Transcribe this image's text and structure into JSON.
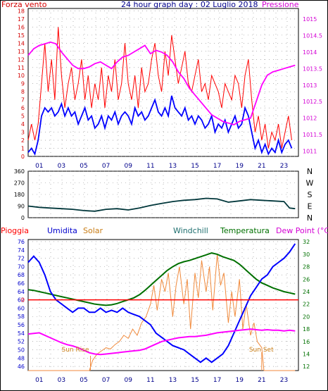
{
  "page": {
    "outer_border_color": "#000000"
  },
  "chart_data": [
    {
      "id": "top",
      "type": "line",
      "title": "24 hour graph day : 02 Luglio 2018",
      "left_label": "Forza vento",
      "right_label": "Pressione",
      "left_color": "#d40000",
      "right_color": "#d400d4",
      "title_color": "#00008b",
      "x_ticks": [
        "01",
        "03",
        "05",
        "07",
        "09",
        "11",
        "13",
        "15",
        "17",
        "19",
        "21",
        "23"
      ],
      "y_left_ticks": [
        "0",
        "1",
        "2",
        "3",
        "4",
        "5",
        "6",
        "7",
        "8",
        "9",
        "10",
        "11",
        "12",
        "13",
        "14",
        "15",
        "16",
        "17",
        "18"
      ],
      "y_right_ticks": [
        "1011",
        "1011.5",
        "1012",
        "1012.5",
        "1013",
        "1013.5",
        "1014",
        "1014.5",
        "1015"
      ],
      "ylim_left": [
        0,
        18.3
      ],
      "ylim_right": [
        1010.84,
        1015.32
      ],
      "xlim": [
        0,
        24.3
      ],
      "series": [
        {
          "color": "#ff0000",
          "axis": "left",
          "x": [
            0,
            0.3,
            0.6,
            0.9,
            1.2,
            1.5,
            1.8,
            2.1,
            2.4,
            2.7,
            3.0,
            3.3,
            3.6,
            3.9,
            4.2,
            4.5,
            4.8,
            5.1,
            5.4,
            5.7,
            6.0,
            6.3,
            6.6,
            6.9,
            7.2,
            7.5,
            7.8,
            8.1,
            8.4,
            8.7,
            9.0,
            9.3,
            9.6,
            9.9,
            10.2,
            10.5,
            10.8,
            11.1,
            11.4,
            11.7,
            12.0,
            12.3,
            12.6,
            12.9,
            13.2,
            13.5,
            13.8,
            14.1,
            14.4,
            14.7,
            15.0,
            15.3,
            15.6,
            15.9,
            16.2,
            16.5,
            16.8,
            17.1,
            17.4,
            17.7,
            18.0,
            18.3,
            18.6,
            18.9,
            19.2,
            19.5,
            19.8,
            20.1,
            20.4,
            20.7,
            21.0,
            21.3,
            21.6,
            21.9,
            22.2,
            22.5,
            22.8,
            23.1,
            23.4,
            23.7
          ],
          "y": [
            2,
            4,
            2,
            4,
            9,
            14,
            8,
            12,
            7,
            16,
            10,
            6,
            9,
            11,
            7,
            9,
            12,
            7,
            10,
            6,
            9,
            7,
            11,
            6,
            10,
            8,
            12,
            7,
            9,
            14,
            9,
            7,
            10,
            6,
            11,
            8,
            9,
            12,
            14,
            10,
            8,
            13,
            10,
            15,
            12,
            9,
            11,
            13,
            9,
            8,
            10,
            12,
            8,
            9,
            7,
            10,
            9,
            8,
            6,
            9,
            8,
            7,
            10,
            9,
            6,
            10,
            12,
            7,
            3,
            5,
            2,
            4,
            1,
            3,
            2,
            4,
            1,
            3,
            5,
            2
          ]
        },
        {
          "color": "#0000ff",
          "axis": "left",
          "x": [
            0,
            0.3,
            0.6,
            0.9,
            1.2,
            1.5,
            1.8,
            2.1,
            2.4,
            2.7,
            3.0,
            3.3,
            3.6,
            3.9,
            4.2,
            4.5,
            4.8,
            5.1,
            5.4,
            5.7,
            6.0,
            6.3,
            6.6,
            6.9,
            7.2,
            7.5,
            7.8,
            8.1,
            8.4,
            8.7,
            9.0,
            9.3,
            9.6,
            9.9,
            10.2,
            10.5,
            10.8,
            11.1,
            11.4,
            11.7,
            12.0,
            12.3,
            12.6,
            12.9,
            13.2,
            13.5,
            13.8,
            14.1,
            14.4,
            14.7,
            15.0,
            15.3,
            15.6,
            15.9,
            16.2,
            16.5,
            16.8,
            17.1,
            17.4,
            17.7,
            18.0,
            18.3,
            18.6,
            18.9,
            19.2,
            19.5,
            19.8,
            20.1,
            20.4,
            20.7,
            21.0,
            21.3,
            21.6,
            21.9,
            22.2,
            22.5,
            22.8,
            23.1,
            23.4,
            23.7
          ],
          "y": [
            0.5,
            1,
            0.3,
            2,
            5,
            6,
            5.5,
            6,
            5,
            5.5,
            6.5,
            5,
            6,
            5,
            5.5,
            4,
            5,
            6,
            4.5,
            5,
            3.5,
            4,
            5,
            3.5,
            5,
            4.5,
            5.5,
            4,
            5,
            5.5,
            5,
            4,
            6,
            5,
            5.5,
            4.5,
            5,
            6,
            7,
            5.5,
            5,
            6,
            5,
            7.5,
            6,
            5.5,
            5,
            6,
            4.5,
            5,
            4,
            5,
            4.5,
            3.5,
            4,
            5,
            3,
            4,
            3.5,
            4.5,
            3,
            4,
            5,
            3.5,
            4,
            6,
            5,
            3,
            1,
            2,
            0.5,
            1.5,
            0.3,
            1,
            0.5,
            2,
            0.5,
            1.5,
            2,
            1
          ]
        },
        {
          "color": "#ff00ff",
          "axis": "right",
          "x": [
            0,
            0.5,
            1,
            1.5,
            2,
            2.5,
            3,
            3.5,
            4,
            4.5,
            5,
            5.5,
            6,
            6.5,
            7,
            7.5,
            8,
            8.5,
            9,
            9.5,
            10,
            10.5,
            11,
            11.5,
            12,
            12.5,
            13,
            13.5,
            14,
            14.5,
            15,
            15.5,
            16,
            16.5,
            17,
            17.5,
            18,
            18.5,
            19,
            19.5,
            20,
            20.5,
            21,
            21.5,
            22,
            22.5,
            23,
            23.5,
            24
          ],
          "y": [
            1013.9,
            1014.1,
            1014.2,
            1014.25,
            1014.3,
            1014.25,
            1014.0,
            1013.8,
            1013.6,
            1013.5,
            1013.5,
            1013.55,
            1013.65,
            1013.7,
            1013.6,
            1013.5,
            1013.7,
            1013.85,
            1013.9,
            1014.0,
            1014.1,
            1014.2,
            1013.95,
            1014.05,
            1014.0,
            1013.9,
            1013.7,
            1013.4,
            1013.2,
            1012.9,
            1012.7,
            1012.5,
            1012.3,
            1012.1,
            1012.0,
            1011.9,
            1011.85,
            1011.8,
            1011.9,
            1011.95,
            1012.0,
            1012.5,
            1013.0,
            1013.3,
            1013.4,
            1013.45,
            1013.5,
            1013.55,
            1013.6
          ]
        }
      ]
    },
    {
      "id": "middle",
      "type": "line",
      "ticks_left": [
        "0",
        "90",
        "180",
        "270",
        "360"
      ],
      "ticks_right": [
        "N",
        "E",
        "S",
        "W",
        "N"
      ],
      "ylim": [
        0,
        360
      ],
      "xlim": [
        0,
        24.3
      ],
      "series": [
        {
          "color": "#00363a",
          "x": [
            0,
            1,
            2,
            3,
            4,
            5,
            6,
            7,
            8,
            9,
            10,
            11,
            12,
            13,
            14,
            15,
            16,
            17,
            18,
            19,
            20,
            21,
            22,
            23,
            23.5,
            24
          ],
          "y": [
            90,
            80,
            75,
            70,
            65,
            55,
            50,
            65,
            70,
            60,
            75,
            95,
            110,
            125,
            135,
            140,
            150,
            145,
            120,
            130,
            140,
            135,
            130,
            125,
            75,
            70
          ]
        }
      ]
    },
    {
      "id": "bottom",
      "type": "line",
      "labels": {
        "pioggia": "Pioggia",
        "umidita": "Umidita",
        "solar": "Solar",
        "windchill": "Windchill",
        "temperatura": "Temperatura",
        "dewpoint": "Dew Point (°C)"
      },
      "label_colors": {
        "pioggia": "#ff0000",
        "umidita": "#0000cd",
        "solar": "#c87c14",
        "windchill": "#1f6f6f",
        "temperatura": "#007000",
        "dewpoint": "#d400d4"
      },
      "y_left_ticks": [
        "46",
        "48",
        "50",
        "52",
        "54",
        "56",
        "58",
        "60",
        "62",
        "64",
        "66",
        "68",
        "70",
        "72",
        "74",
        "76"
      ],
      "y_right_ticks": [
        "12",
        "14",
        "16",
        "18",
        "20",
        "22",
        "24",
        "26",
        "28",
        "30",
        "32"
      ],
      "ylim_left": [
        45,
        76.5
      ],
      "ylim_right": [
        11.34,
        32.36
      ],
      "xlim": [
        0,
        24.3
      ],
      "x_ticks": [
        "01",
        "03",
        "05",
        "07",
        "09",
        "11",
        "13",
        "15",
        "17",
        "19",
        "21",
        "23"
      ],
      "rain_label": "0",
      "rain_value": 0,
      "sunrise_label": "Sun Rise",
      "sunset_label": "Sun Set",
      "sunrise_time": 5.6,
      "sunset_time": 21.0,
      "series": [
        {
          "name": "Umidita",
          "color": "#0000ff",
          "axis": "left",
          "x": [
            0,
            0.5,
            1,
            1.5,
            2,
            2.5,
            3,
            3.5,
            4,
            4.5,
            5,
            5.5,
            6,
            6.5,
            7,
            7.5,
            8,
            8.5,
            9,
            9.5,
            10,
            10.5,
            11,
            11.5,
            12,
            12.5,
            13,
            13.5,
            14,
            14.5,
            15,
            15.5,
            16,
            16.5,
            17,
            17.5,
            18,
            18.5,
            19,
            19.5,
            20,
            20.5,
            21,
            21.5,
            22,
            22.5,
            23,
            23.5,
            24
          ],
          "y": [
            71,
            72.5,
            71,
            68,
            64,
            62,
            61,
            60,
            59,
            60,
            60,
            59,
            59,
            60,
            59,
            59.5,
            59,
            60,
            59,
            58.5,
            58,
            57,
            56,
            54,
            53,
            52,
            51,
            50.5,
            50,
            49,
            48,
            47,
            48,
            47,
            48,
            49,
            51,
            54,
            57,
            60,
            63,
            65,
            67,
            68,
            70,
            71,
            72,
            73.5,
            75.5
          ]
        },
        {
          "name": "Temperatura",
          "color": "#007000",
          "axis": "right",
          "x": [
            0,
            0.5,
            1,
            1.5,
            2,
            2.5,
            3,
            3.5,
            4,
            4.5,
            5,
            5.5,
            6,
            6.5,
            7,
            7.5,
            8,
            8.5,
            9,
            9.5,
            10,
            10.5,
            11,
            11.5,
            12,
            12.5,
            13,
            13.5,
            14,
            14.5,
            15,
            15.5,
            16,
            16.5,
            17,
            17.5,
            18,
            18.5,
            19,
            19.5,
            20,
            20.5,
            21,
            21.5,
            22,
            22.5,
            23,
            23.5,
            24
          ],
          "y": [
            24.3,
            24.2,
            24.0,
            23.8,
            23.6,
            23.4,
            23.2,
            23.0,
            22.8,
            22.6,
            22.4,
            22.2,
            22.0,
            21.9,
            21.8,
            21.9,
            22.1,
            22.4,
            22.7,
            23.0,
            23.5,
            24.2,
            25.0,
            25.8,
            26.6,
            27.4,
            28.0,
            28.5,
            28.8,
            29.0,
            29.3,
            29.6,
            29.9,
            30.2,
            30.0,
            29.6,
            29.3,
            29.0,
            28.4,
            27.6,
            26.8,
            26.0,
            25.4,
            25.0,
            24.6,
            24.3,
            24.0,
            23.8,
            23.6
          ]
        },
        {
          "name": "Dew Point",
          "color": "#ff00ff",
          "axis": "right",
          "x": [
            0,
            0.5,
            1,
            1.5,
            2,
            2.5,
            3,
            3.5,
            4,
            4.5,
            5,
            5.5,
            6,
            6.5,
            7,
            7.5,
            8,
            8.5,
            9,
            9.5,
            10,
            10.5,
            11,
            11.5,
            12,
            12.5,
            13,
            13.5,
            14,
            14.5,
            15,
            15.5,
            16,
            16.5,
            17,
            17.5,
            18,
            18.5,
            19,
            19.5,
            20,
            20.5,
            21,
            21.5,
            22,
            22.5,
            23,
            23.5,
            24
          ],
          "y": [
            17.2,
            17.3,
            17.4,
            17.0,
            16.6,
            16.2,
            15.8,
            15.5,
            15.3,
            15.0,
            14.6,
            14.2,
            14.0,
            13.9,
            14.0,
            14.1,
            14.2,
            14.3,
            14.4,
            14.5,
            14.6,
            14.8,
            15.2,
            15.6,
            16.0,
            16.2,
            16.4,
            16.6,
            16.7,
            16.8,
            16.8,
            16.9,
            17.0,
            17.2,
            17.4,
            17.5,
            17.6,
            17.7,
            17.8,
            17.9,
            18.0,
            17.9,
            17.8,
            17.9,
            17.8,
            17.8,
            17.7,
            17.8,
            17.7
          ]
        },
        {
          "name": "Solar",
          "color": "#f08a3c",
          "axis": "right",
          "x": [
            0,
            5.5,
            5.8,
            6.2,
            6.6,
            7,
            7.4,
            7.8,
            8.2,
            8.6,
            9,
            9.4,
            9.8,
            10.2,
            10.6,
            11,
            11.3,
            11.6,
            12,
            12.3,
            12.6,
            13,
            13.3,
            13.6,
            14,
            14.3,
            14.6,
            15,
            15.3,
            15.6,
            16,
            16.3,
            16.6,
            17,
            17.3,
            17.6,
            18,
            18.3,
            18.6,
            19,
            19.3,
            19.6,
            20,
            20.3,
            20.6,
            21,
            21.2,
            24
          ],
          "y": [
            11.34,
            11.34,
            13,
            14,
            14.5,
            15,
            14.8,
            15.5,
            16,
            17,
            16.5,
            18,
            17,
            19,
            20,
            22,
            25,
            21,
            26,
            24,
            27,
            20,
            25,
            28,
            22,
            26,
            18,
            27,
            23,
            29,
            24,
            28,
            21,
            30,
            25,
            27,
            19,
            24,
            20,
            26,
            18,
            22,
            17,
            19,
            16,
            15,
            11.34,
            11.34
          ]
        }
      ]
    }
  ]
}
